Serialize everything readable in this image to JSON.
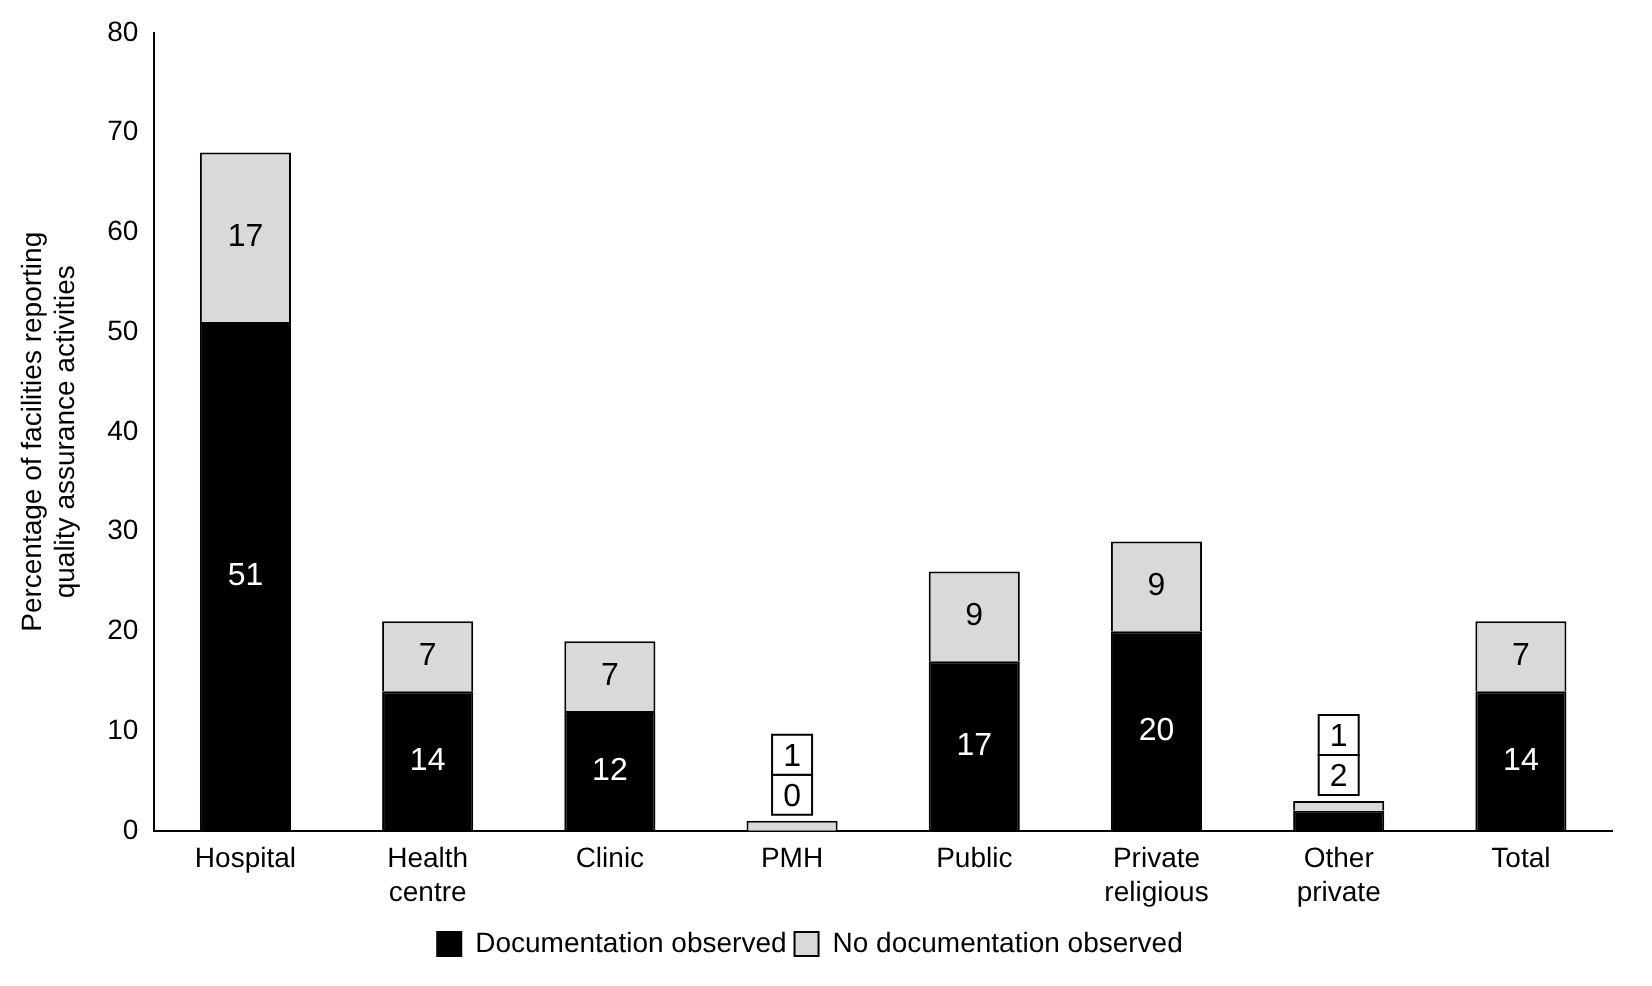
{
  "chart_data": {
    "type": "bar",
    "stacked": true,
    "ylabel": "Percentage of facilities reporting quality assurance activities",
    "categories": [
      "Hospital",
      "Health centre",
      "Clinic",
      "PMH",
      "Public",
      "Private religious",
      "Other private",
      "Total"
    ],
    "series": [
      {
        "name": "Documentation observed",
        "color": "#000000",
        "values": [
          51,
          14,
          12,
          0,
          17,
          20,
          2,
          14
        ]
      },
      {
        "name": "No documentation observed",
        "color": "#d9d9d9",
        "values": [
          17,
          7,
          7,
          1,
          9,
          9,
          1,
          7
        ]
      }
    ],
    "ylim": [
      0,
      80
    ],
    "yticks": [
      0,
      10,
      20,
      30,
      40,
      50,
      60,
      70,
      80
    ],
    "grid": false,
    "legend": "bottom",
    "data_labels": true
  }
}
